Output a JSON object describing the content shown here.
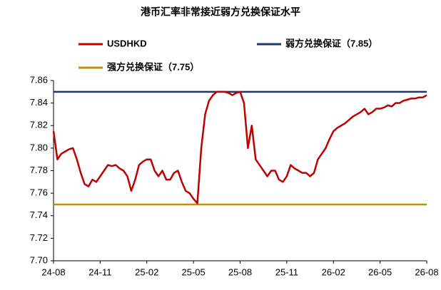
{
  "chart_data": {
    "type": "line",
    "title": "港币汇率非常接近弱方兑换保证水平",
    "categories": [
      "24-08",
      null,
      null,
      null,
      null,
      null,
      null,
      null,
      null,
      null,
      null,
      null,
      "24-11",
      null,
      null,
      null,
      null,
      null,
      null,
      null,
      null,
      null,
      null,
      null,
      "25-02",
      null,
      null,
      null,
      null,
      null,
      null,
      null,
      null,
      null,
      null,
      null,
      "25-05",
      null,
      null,
      null,
      null,
      null,
      null,
      null,
      null,
      null,
      null,
      null,
      "25-08",
      null,
      null,
      null,
      null,
      null,
      null,
      null,
      null,
      null,
      null,
      null,
      "25-11",
      null,
      null,
      null,
      null,
      null,
      null,
      null,
      null,
      null,
      null,
      null,
      "26-02",
      null,
      null,
      null,
      null,
      null,
      null,
      null,
      null,
      null,
      null,
      null,
      "26-05",
      null,
      null,
      null,
      null,
      null,
      null,
      null,
      null,
      null,
      null,
      null,
      "26-08"
    ],
    "series": [
      {
        "name": "USDHKD",
        "color": "#c00000",
        "values": [
          7.815,
          7.79,
          7.795,
          7.797,
          7.799,
          7.8,
          7.79,
          7.778,
          7.768,
          7.766,
          7.772,
          7.77,
          7.775,
          7.78,
          7.785,
          7.784,
          7.785,
          7.782,
          7.78,
          7.775,
          7.762,
          7.772,
          7.785,
          7.788,
          7.79,
          7.79,
          7.78,
          7.775,
          7.78,
          7.772,
          7.772,
          7.778,
          7.78,
          7.77,
          7.762,
          7.76,
          7.755,
          7.751,
          7.8,
          7.83,
          7.842,
          7.847,
          7.85,
          7.85,
          7.85,
          7.849,
          7.847,
          7.849,
          7.85,
          7.84,
          7.8,
          7.82,
          7.79,
          7.785,
          7.78,
          7.775,
          7.78,
          7.78,
          7.772,
          7.77,
          7.775,
          7.785,
          7.782,
          7.78,
          7.778,
          7.778,
          7.775,
          7.778,
          7.79,
          7.795,
          7.8,
          7.808,
          7.815,
          7.818,
          7.82,
          7.822,
          7.825,
          7.828,
          7.83,
          7.832,
          7.835,
          7.83,
          7.832,
          7.835,
          7.835,
          7.836,
          7.838,
          7.837,
          7.84,
          7.84,
          7.842,
          7.843,
          7.844,
          7.844,
          7.845,
          7.845,
          7.847
        ]
      }
    ],
    "reference_lines": [
      {
        "name": "弱方兑换保证（7.85）",
        "color": "#1f3864",
        "value": 7.85
      },
      {
        "name": "强方兑换保证（7.75）",
        "color": "#bf9000",
        "value": 7.75
      }
    ],
    "ylim": [
      7.7,
      7.86
    ],
    "yticks": [
      {
        "value": 7.7,
        "label": "7.70"
      },
      7.72,
      7.74,
      7.76,
      7.78,
      {
        "value": 7.8,
        "label": "7.80"
      },
      7.82,
      7.84,
      7.86
    ],
    "grid": false
  }
}
